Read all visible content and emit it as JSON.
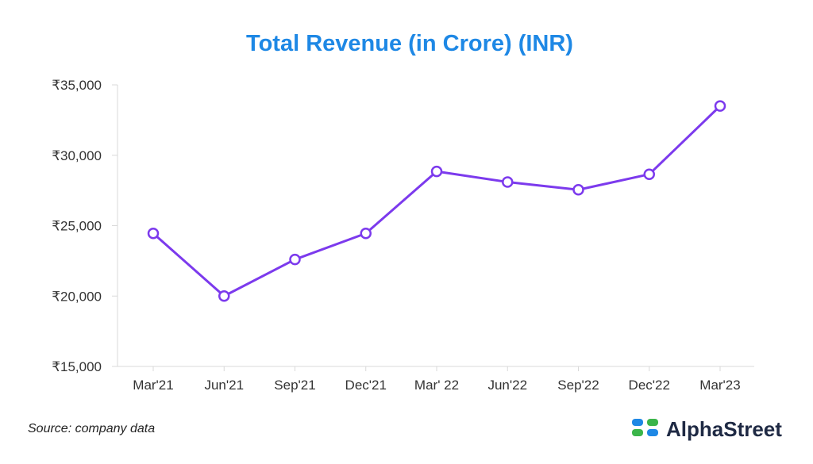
{
  "chart_data": {
    "type": "line",
    "title": "Total Revenue (in Crore) (INR)",
    "categories": [
      "Mar'21",
      "Jun'21",
      "Sep'21",
      "Dec'21",
      "Mar' 22",
      "Jun'22",
      "Sep'22",
      "Dec'22",
      "Mar'23"
    ],
    "series": [
      {
        "name": "Total Revenue",
        "values": [
          24450,
          20000,
          22600,
          24450,
          28850,
          28100,
          27550,
          28650,
          33500
        ],
        "color": "#7c3aed"
      }
    ],
    "y_ticks": [
      15000,
      20000,
      25000,
      30000,
      35000
    ],
    "y_tick_labels": [
      "₹15,000",
      "₹20,000",
      "₹25,000",
      "₹30,000",
      "₹35,000"
    ],
    "ylim": [
      15000,
      35000
    ],
    "xlabel": "",
    "ylabel": "",
    "grid": false
  },
  "footer": {
    "source": "Source: company data",
    "brand": "AlphaStreet"
  },
  "colors": {
    "title": "#1e88e5",
    "line": "#7c3aed",
    "logo_blue": "#1e88e5",
    "logo_green": "#3bb54a"
  }
}
